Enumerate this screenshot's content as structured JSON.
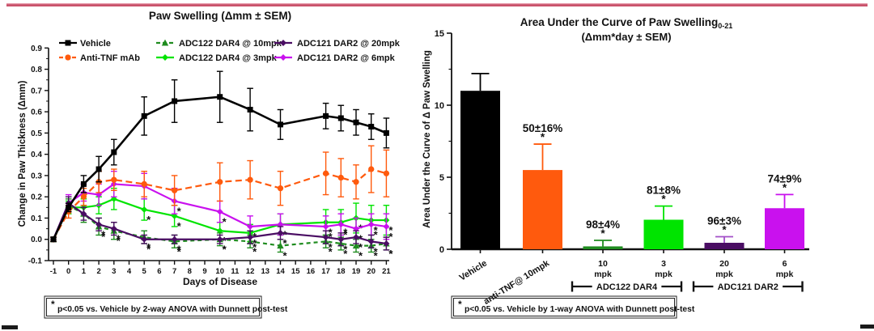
{
  "page": {
    "top_rule_color": "#c9536b"
  },
  "chart_data": [
    {
      "type": "line",
      "title": "Paw Swelling (Δmm ± SEM)",
      "xlabel": "Days of Disease",
      "ylabel": "Change in Paw Thickness (Δmm)",
      "footnote_star": "*",
      "footnote": "p<0.05 vs. Vehicle by 2-way ANOVA with Dunnett post-test",
      "xlim": [
        -1,
        21
      ],
      "ylim": [
        -0.1,
        0.9
      ],
      "xticks": [
        -1,
        0,
        1,
        2,
        3,
        4,
        5,
        6,
        7,
        8,
        9,
        10,
        11,
        12,
        13,
        14,
        15,
        16,
        17,
        18,
        19,
        20,
        21
      ],
      "yticks": [
        0.9,
        0.8,
        0.7,
        0.6,
        0.5,
        0.4,
        0.3,
        0.2,
        0.1,
        0.0,
        -0.1
      ],
      "grid": false,
      "legend_position": "top-inside",
      "x": [
        -1,
        0,
        1,
        2,
        3,
        5,
        7,
        10,
        12,
        14,
        17,
        18,
        19,
        20,
        21
      ],
      "series": [
        {
          "name": "Vehicle",
          "color": "#000000",
          "line": "solid",
          "marker": "square",
          "values": [
            0.0,
            0.15,
            0.26,
            0.33,
            0.41,
            0.58,
            0.65,
            0.67,
            0.61,
            0.54,
            0.58,
            0.57,
            0.55,
            0.53,
            0.5
          ],
          "sem": [
            0.01,
            0.02,
            0.04,
            0.06,
            0.06,
            0.09,
            0.1,
            0.12,
            0.1,
            0.07,
            0.06,
            0.06,
            0.06,
            0.06,
            0.07
          ],
          "sig_days": []
        },
        {
          "name": "Anti-TNF mAb",
          "color": "#ff5a0d",
          "line": "dashed",
          "marker": "circle",
          "values": [
            0.0,
            0.13,
            0.2,
            0.27,
            0.28,
            0.26,
            0.23,
            0.27,
            0.28,
            0.24,
            0.31,
            0.29,
            0.27,
            0.33,
            0.31
          ],
          "sem": [
            0.01,
            0.03,
            0.04,
            0.05,
            0.05,
            0.06,
            0.07,
            0.09,
            0.09,
            0.08,
            0.1,
            0.09,
            0.08,
            0.11,
            0.11
          ],
          "sig_days": []
        },
        {
          "name": "ADC122 DAR4 @ 10mpk",
          "color": "#1f8c1f",
          "line": "dashed",
          "marker": "triangle",
          "values": [
            0.0,
            0.16,
            0.12,
            0.06,
            0.04,
            0.01,
            -0.01,
            0.0,
            -0.01,
            -0.03,
            -0.01,
            -0.02,
            -0.03,
            -0.03,
            -0.02
          ],
          "sem": [
            0.01,
            0.03,
            0.04,
            0.04,
            0.04,
            0.03,
            0.03,
            0.03,
            0.03,
            0.03,
            0.03,
            0.03,
            0.03,
            0.03,
            0.03
          ],
          "sig_days": [
            2,
            3,
            5,
            7,
            10,
            12,
            14,
            17,
            18,
            19,
            20,
            21
          ]
        },
        {
          "name": "ADC122 DAR4 @ 3mpk",
          "color": "#00e400",
          "line": "solid",
          "marker": "diamond",
          "values": [
            0.0,
            0.15,
            0.15,
            0.16,
            0.19,
            0.14,
            0.11,
            0.04,
            0.03,
            0.07,
            0.08,
            0.08,
            0.1,
            0.09,
            0.09
          ],
          "sem": [
            0.01,
            0.03,
            0.04,
            0.04,
            0.05,
            0.05,
            0.05,
            0.04,
            0.04,
            0.05,
            0.06,
            0.06,
            0.07,
            0.07,
            0.07
          ],
          "sig_days": [
            5,
            7,
            10,
            12,
            14,
            17,
            18,
            19,
            20,
            21
          ]
        },
        {
          "name": "ADC121 DAR2 @ 20mpk",
          "color": "#4a0d63",
          "line": "solid",
          "marker": "diamond",
          "values": [
            0.0,
            0.17,
            0.12,
            0.07,
            0.05,
            0.0,
            0.0,
            0.0,
            0.01,
            0.03,
            0.01,
            0.0,
            0.01,
            -0.01,
            -0.02
          ],
          "sem": [
            0.01,
            0.03,
            0.03,
            0.03,
            0.03,
            0.02,
            0.02,
            0.02,
            0.03,
            0.03,
            0.03,
            0.03,
            0.03,
            0.03,
            0.03
          ],
          "sig_days": [
            2,
            3,
            5,
            7,
            10,
            12,
            14,
            17,
            18,
            19,
            20,
            21
          ]
        },
        {
          "name": "ADC121 DAR2 @ 6mpk",
          "color": "#c911ee",
          "line": "solid",
          "marker": "diamond",
          "values": [
            0.0,
            0.17,
            0.22,
            0.21,
            0.26,
            0.25,
            0.18,
            0.13,
            0.06,
            0.07,
            0.06,
            0.07,
            0.05,
            0.07,
            0.06
          ],
          "sem": [
            0.01,
            0.04,
            0.04,
            0.05,
            0.06,
            0.06,
            0.06,
            0.05,
            0.05,
            0.05,
            0.05,
            0.05,
            0.05,
            0.05,
            0.06
          ],
          "sig_days": [
            7,
            10,
            12,
            14,
            17,
            18,
            19,
            20,
            21
          ]
        }
      ]
    },
    {
      "type": "bar",
      "title": "Area Under the Curve of Paw Swelling",
      "title_subscript": "0-21",
      "subtitle": "(Δmm*day ± SEM)",
      "ylabel": "Area Under the Curve of  Δ Paw Swelling",
      "footnote_star": "*",
      "footnote": "p<0.05 vs. Vehicle by 1-way ANOVA with Dunnett post-test",
      "ylim": [
        0,
        15
      ],
      "yticks": [
        0,
        5,
        10,
        15
      ],
      "yminorticks": [
        2.5,
        7.5,
        12.5
      ],
      "grid": false,
      "categories": [
        "Vehicle",
        "anti-TNF@ 10mpk",
        "10\nmpk",
        "3\nmpk",
        "20\nmpk",
        "6\nmpk"
      ],
      "values": [
        11.0,
        5.5,
        0.2,
        2.05,
        0.45,
        2.85
      ],
      "sem": [
        1.2,
        1.8,
        0.42,
        0.95,
        0.42,
        0.95
      ],
      "colors": [
        "#000000",
        "#ff5a0d",
        "#1f8c1f",
        "#00e400",
        "#4a0d63",
        "#c911ee"
      ],
      "err_colors": [
        "#000000",
        "#ff5a0d",
        "#1f8c1f",
        "#00e400",
        "#a24fc8",
        "#c911ee"
      ],
      "annotations": [
        null,
        "50±16%",
        "98±4%",
        "81±8%",
        "96±3%",
        "74±9%"
      ],
      "sig": [
        false,
        true,
        true,
        true,
        true,
        true
      ],
      "sig_symbol": "*",
      "group_brackets": [
        {
          "label": "ADC122 DAR4",
          "from": 2,
          "to": 3
        },
        {
          "label": "ADC121 DAR2",
          "from": 4,
          "to": 5
        }
      ]
    }
  ]
}
